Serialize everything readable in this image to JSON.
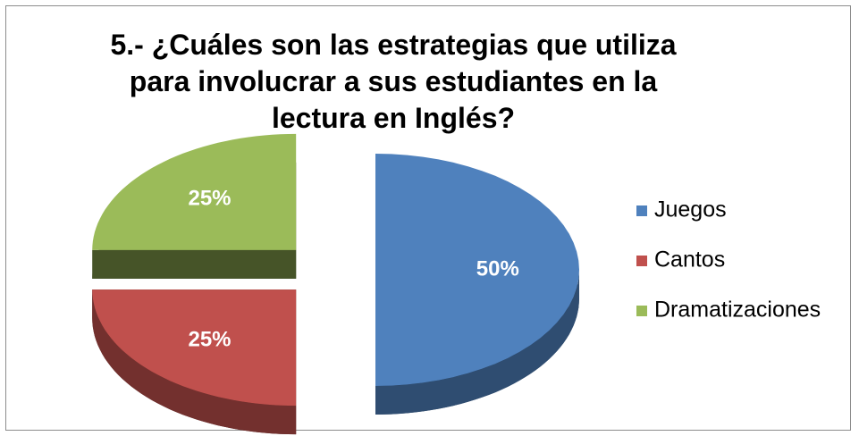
{
  "chart_data": {
    "type": "pie",
    "title": "5.- ¿Cuáles son las estrategias que utiliza para involucrar a sus estudiantes en la lectura en Inglés?",
    "categories": [
      "Juegos",
      "Cantos",
      "Dramatizaciones"
    ],
    "values": [
      50,
      25,
      25
    ],
    "value_labels": [
      "50%",
      "25%",
      "25%"
    ],
    "colors": [
      "#4f81bd",
      "#c0504d",
      "#9bbb59"
    ],
    "legend": "right"
  }
}
